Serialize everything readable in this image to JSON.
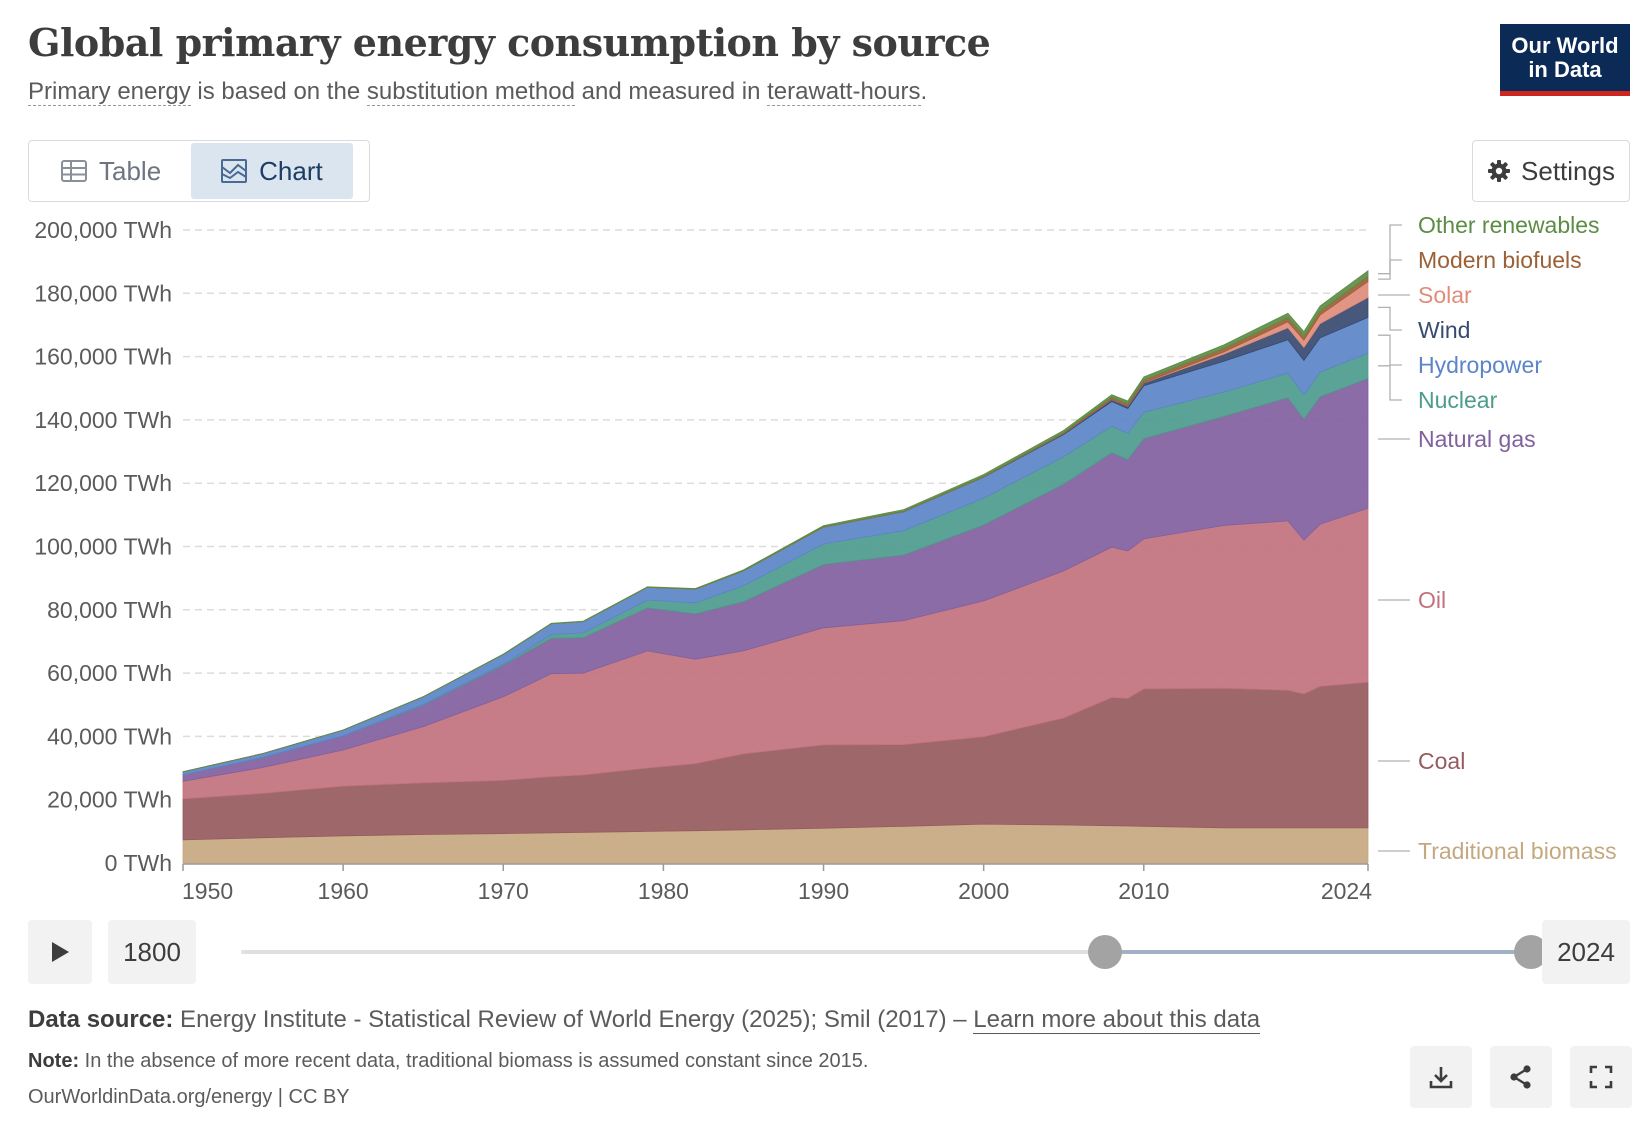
{
  "header": {
    "title": "Global primary energy consumption by source",
    "subtitle": {
      "term1": "Primary energy",
      "text1": " is based on the ",
      "term2": "substitution method",
      "text2": " and measured in ",
      "term3": "terawatt-hours",
      "text3": "."
    },
    "logo_line1": "Our World",
    "logo_line2": "in Data"
  },
  "tabs": [
    {
      "label": "Table",
      "icon": "table-icon",
      "active": false
    },
    {
      "label": "Chart",
      "icon": "chart-icon",
      "active": true
    }
  ],
  "settings_label": "Settings",
  "timeline": {
    "start_year": "1800",
    "end_year": "2024",
    "range_min": 1800,
    "range_max": 2024,
    "selected_start": 1950,
    "selected_end": 2024
  },
  "footer": {
    "source_label": "Data source:",
    "source_text": " Energy Institute - Statistical Review of World Energy (2025); Smil (2017) – ",
    "source_link": "Learn more about this data",
    "note_label": "Note:",
    "note_text": " In the absence of more recent data, traditional biomass is assumed constant since 2015.",
    "citation": "OurWorldinData.org/energy | CC BY"
  },
  "colors": {
    "traditional_biomass": "#c5a880",
    "coal": "#965b5e",
    "oil": "#c1727d",
    "natural_gas": "#8160a0",
    "nuclear": "#4d9b8d",
    "hydropower": "#5b85c8",
    "wind": "#374a70",
    "solar": "#df8c7b",
    "modern_biofuels": "#9b6036",
    "other_renewables": "#5c8d45"
  },
  "chart_data": {
    "type": "area",
    "stacked": true,
    "unit": "TWh",
    "xlim": [
      1950,
      2024
    ],
    "ylim": [
      0,
      200000
    ],
    "x_ticks": [
      "1950",
      "1960",
      "1970",
      "1980",
      "1990",
      "2000",
      "2010",
      "2024"
    ],
    "y_ticks": [
      "0 TWh",
      "20,000 TWh",
      "40,000 TWh",
      "60,000 TWh",
      "80,000 TWh",
      "100,000 TWh",
      "120,000 TWh",
      "140,000 TWh",
      "160,000 TWh",
      "180,000 TWh",
      "200,000 TWh"
    ],
    "grid": true,
    "legend": "right",
    "x": [
      1950,
      1955,
      1960,
      1965,
      1970,
      1973,
      1975,
      1979,
      1982,
      1985,
      1990,
      1995,
      2000,
      2005,
      2008,
      2009,
      2010,
      2015,
      2019,
      2020,
      2021,
      2024
    ],
    "series": [
      {
        "name": "Traditional biomass",
        "values": [
          7300,
          8000,
          8600,
          9000,
          9300,
          9500,
          9700,
          10000,
          10200,
          10500,
          11000,
          11600,
          12300,
          12000,
          11800,
          11700,
          11600,
          11100,
          11100,
          11100,
          11100,
          11100
        ]
      },
      {
        "name": "Coal",
        "values": [
          13000,
          14000,
          15700,
          16300,
          16800,
          17800,
          18100,
          20000,
          21200,
          24000,
          26300,
          25800,
          27600,
          33800,
          40500,
          40300,
          43400,
          44100,
          43500,
          42300,
          44700,
          46000
        ]
      },
      {
        "name": "Oil",
        "values": [
          5500,
          8200,
          11400,
          17800,
          26400,
          32500,
          32200,
          37000,
          33000,
          32500,
          37000,
          39200,
          42900,
          46500,
          47500,
          46600,
          47400,
          51500,
          53500,
          48600,
          51200,
          55000
        ]
      },
      {
        "name": "Natural gas",
        "values": [
          2100,
          3200,
          4500,
          6800,
          10000,
          11200,
          11200,
          13600,
          14300,
          15600,
          20000,
          20700,
          24000,
          27400,
          29800,
          28900,
          31700,
          34400,
          38900,
          38300,
          40300,
          41000
        ]
      },
      {
        "name": "Nuclear",
        "values": [
          0,
          0,
          0,
          200,
          300,
          1200,
          1500,
          2500,
          3500,
          5000,
          6500,
          7700,
          8500,
          8700,
          8400,
          8300,
          8300,
          7700,
          7800,
          7600,
          7800,
          8000
        ]
      },
      {
        "name": "Hydropower",
        "values": [
          900,
          1200,
          1800,
          2400,
          3100,
          3400,
          3600,
          4000,
          4300,
          4700,
          5300,
          6000,
          6600,
          7000,
          7800,
          7800,
          8400,
          9700,
          10500,
          10900,
          10800,
          11300
        ]
      },
      {
        "name": "Wind",
        "values": [
          0,
          0,
          0,
          0,
          0,
          0,
          0,
          0,
          0,
          0,
          10,
          50,
          80,
          300,
          600,
          700,
          900,
          2300,
          3800,
          4100,
          4500,
          6300
        ]
      },
      {
        "name": "Solar",
        "values": [
          0,
          0,
          0,
          0,
          0,
          0,
          0,
          0,
          0,
          0,
          0,
          0,
          10,
          20,
          60,
          80,
          90,
          700,
          1900,
          2300,
          2700,
          5000
        ]
      },
      {
        "name": "Modern biofuels",
        "values": [
          0,
          0,
          0,
          0,
          0,
          0,
          0,
          10,
          30,
          60,
          100,
          120,
          150,
          300,
          700,
          750,
          850,
          1100,
          1300,
          1200,
          1300,
          1600
        ]
      },
      {
        "name": "Other renewables",
        "values": [
          0,
          0,
          30,
          50,
          100,
          120,
          140,
          170,
          200,
          250,
          400,
          500,
          600,
          700,
          800,
          850,
          900,
          1100,
          1400,
          1500,
          1600,
          1800
        ]
      }
    ]
  }
}
